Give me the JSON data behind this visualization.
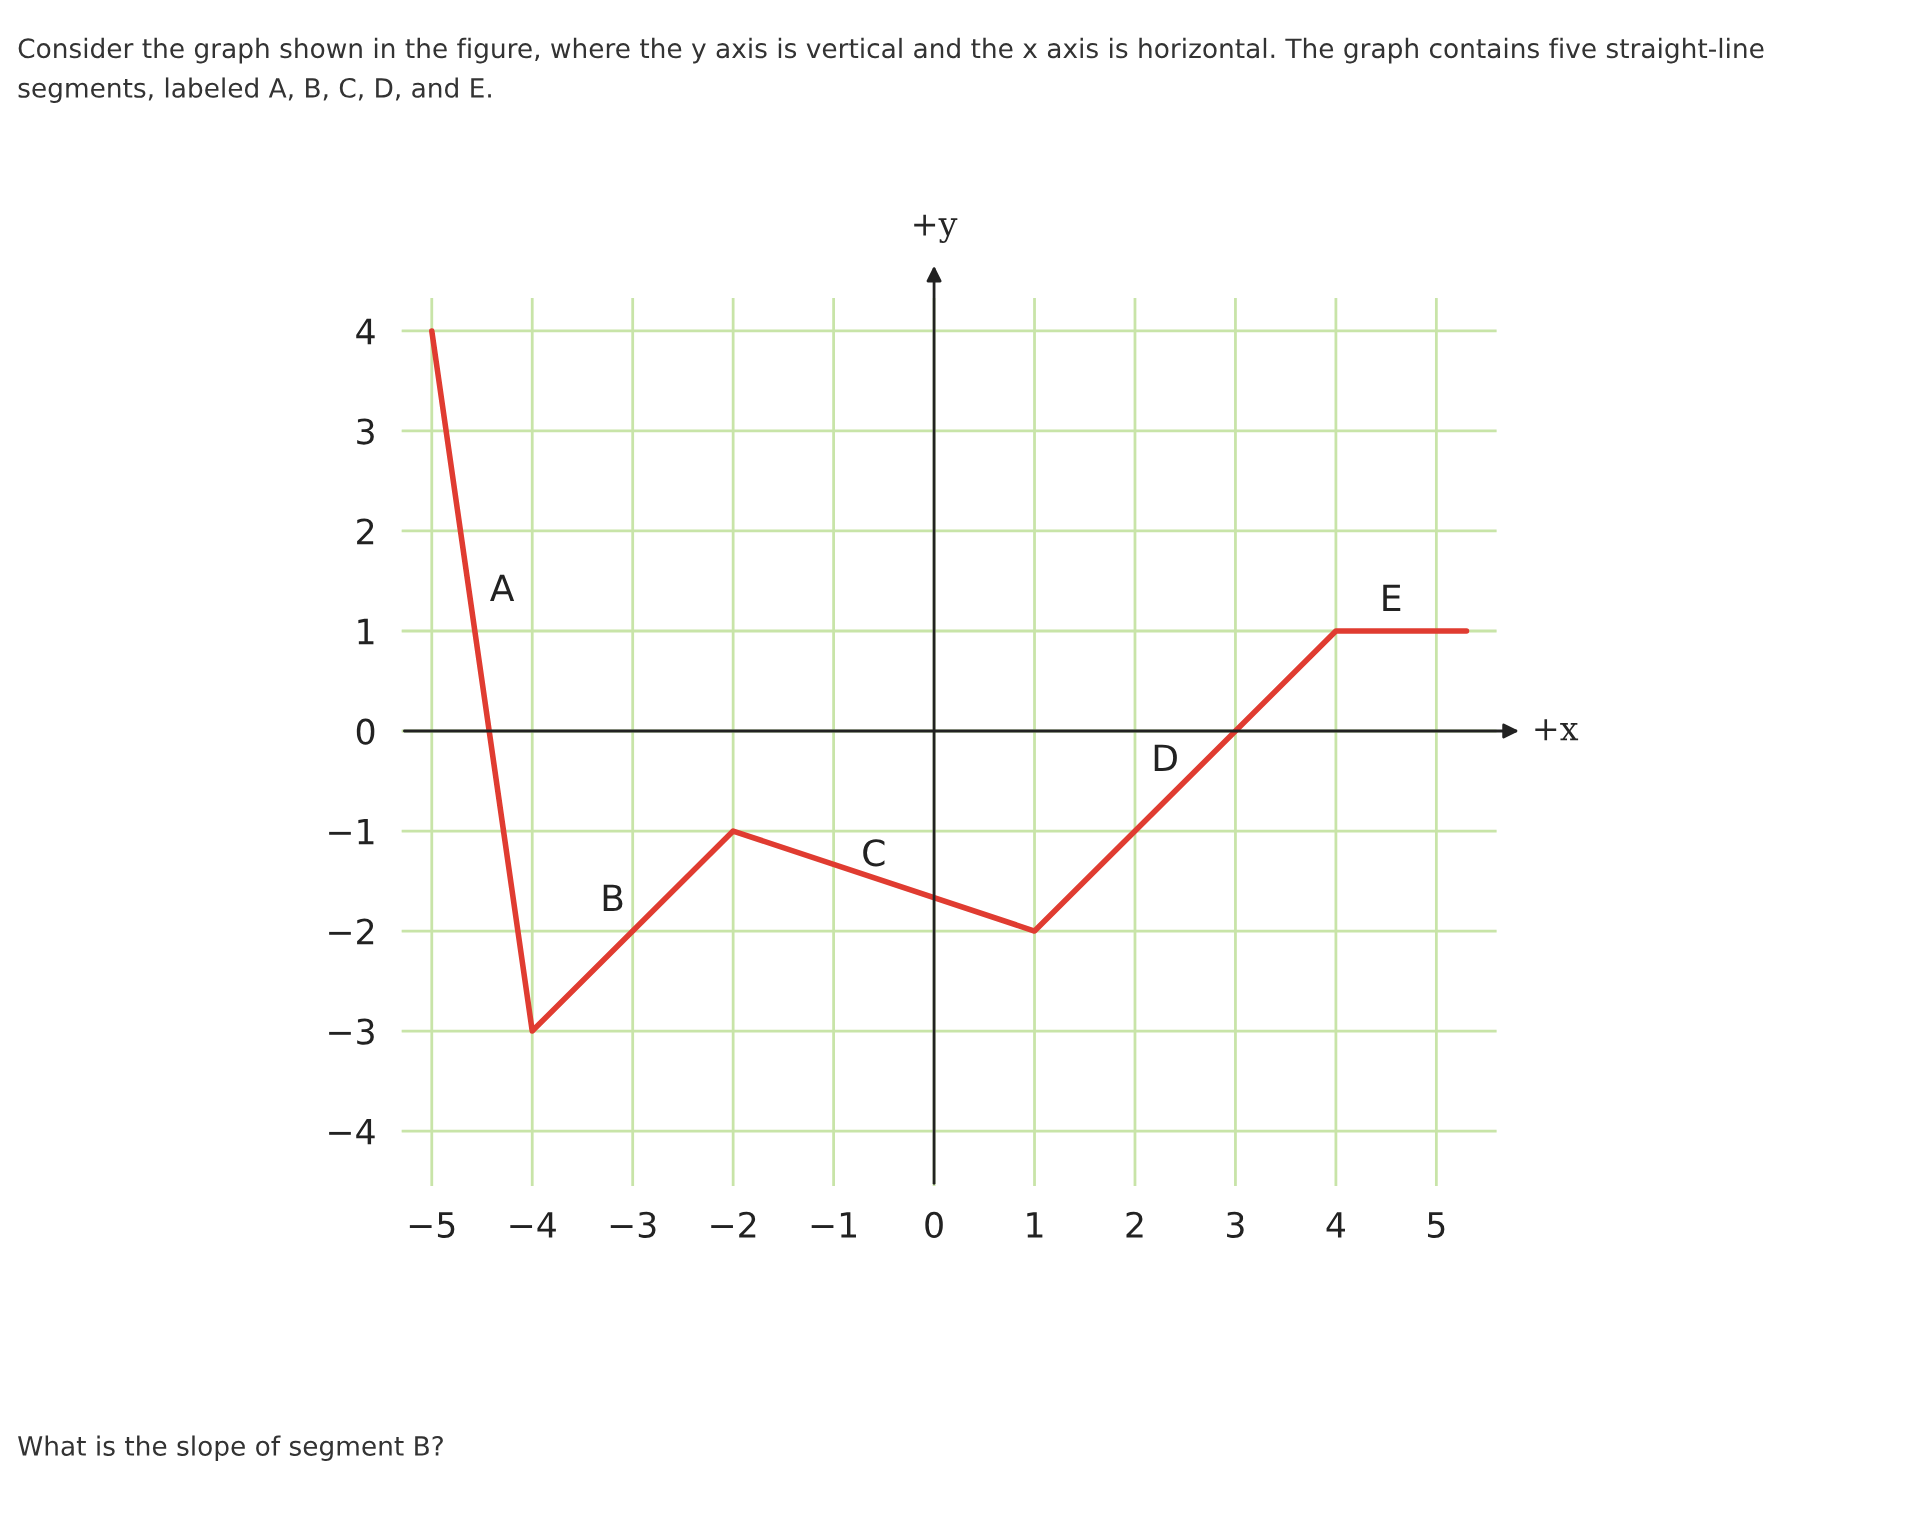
{
  "chart_data": {
    "type": "line",
    "title": "Consider the graph shown in the figure, where the y axis is vertical and the x axis is horizontal. The graph contains five straight-line segments, labeled A, B, C, D, and E.",
    "xlabel": "+x",
    "ylabel": "+y",
    "x": [
      -5,
      -4,
      -2,
      1,
      4,
      5.3
    ],
    "series": [
      {
        "color": "#e03c31",
        "values": [
          4,
          -3,
          -1,
          -2,
          1,
          1
        ]
      }
    ],
    "xlim": [
      -5.3,
      5.6
    ],
    "ylim": [
      -4.55,
      4.33
    ],
    "xticks": [
      {
        "value": -5,
        "label": "−5"
      },
      {
        "value": -4,
        "label": "−4"
      },
      {
        "value": -3,
        "label": "−3"
      },
      {
        "value": -2,
        "label": "−2"
      },
      {
        "value": -1,
        "label": "−1"
      },
      0,
      1,
      2,
      3,
      4,
      5
    ],
    "yticks": [
      {
        "value": -4,
        "label": "−4"
      },
      {
        "value": -3,
        "label": "−3"
      },
      {
        "value": -2,
        "label": "−2"
      },
      {
        "value": -1,
        "label": "−1"
      },
      0,
      1,
      2,
      3,
      4
    ],
    "grid": true,
    "marker": "none",
    "line_style": "solid",
    "annotations": [
      "A",
      "B",
      "C",
      "D",
      "E",
      "What is the slope of segment B?"
    ]
  }
}
